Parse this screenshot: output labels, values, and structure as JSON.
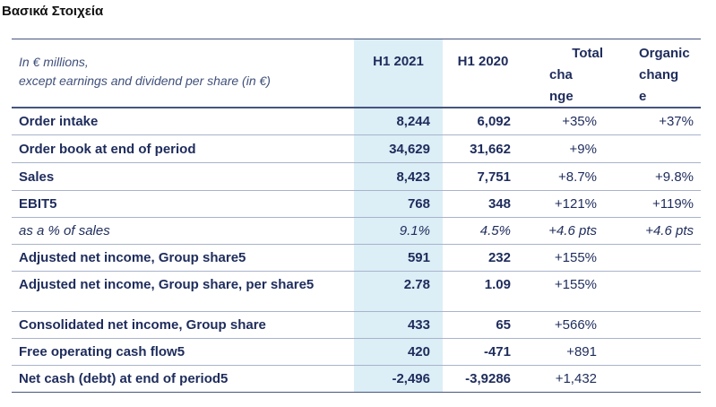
{
  "title": "Βασικά Στοιχεία",
  "header": {
    "description_line1": "In € millions,",
    "description_line2": "except earnings and dividend per share (in €)",
    "col_h1_2021": "H1 2021",
    "col_h1_2020": "H1 2020",
    "col_total_1": "Total",
    "col_total_2": "cha",
    "col_total_3": "nge",
    "col_organic_1": "Organic",
    "col_organic_2": "chang",
    "col_organic_3": "e"
  },
  "rows": [
    {
      "label": "Order intake",
      "h1_2021": "8,244",
      "h1_2020": "6,092",
      "total": "+35%",
      "organic": "+37%"
    },
    {
      "label": "Order book at end of period",
      "h1_2021": "34,629",
      "h1_2020": "31,662",
      "total": "+9%",
      "organic": ""
    },
    {
      "label": "Sales",
      "h1_2021": "8,423",
      "h1_2020": "7,751",
      "total": "+8.7%",
      "organic": "+9.8%"
    },
    {
      "label": "EBIT5",
      "h1_2021": "768",
      "h1_2020": "348",
      "total": "+121%",
      "organic": "+119%"
    },
    {
      "label": "as a % of sales",
      "h1_2021": "9.1%",
      "h1_2020": "4.5%",
      "total": "+4.6 pts",
      "organic": "+4.6 pts"
    },
    {
      "label": "Adjusted net income, Group share5",
      "h1_2021": "591",
      "h1_2020": "232",
      "total": "+155%",
      "organic": ""
    },
    {
      "label": "Adjusted net income, Group share, per share5",
      "h1_2021": "2.78",
      "h1_2020": "1.09",
      "total": "+155%",
      "organic": ""
    },
    {
      "label": "Consolidated net income, Group share",
      "h1_2021": "433",
      "h1_2020": "65",
      "total": "+566%",
      "organic": ""
    },
    {
      "label": "Free operating cash flow5",
      "h1_2021": "420",
      "h1_2020": "-471",
      "total": "+891",
      "organic": ""
    },
    {
      "label": "Net cash (debt) at end of period5",
      "h1_2021": "-2,496",
      "h1_2020": "-3,9286",
      "total": "+1,432",
      "organic": ""
    }
  ]
}
